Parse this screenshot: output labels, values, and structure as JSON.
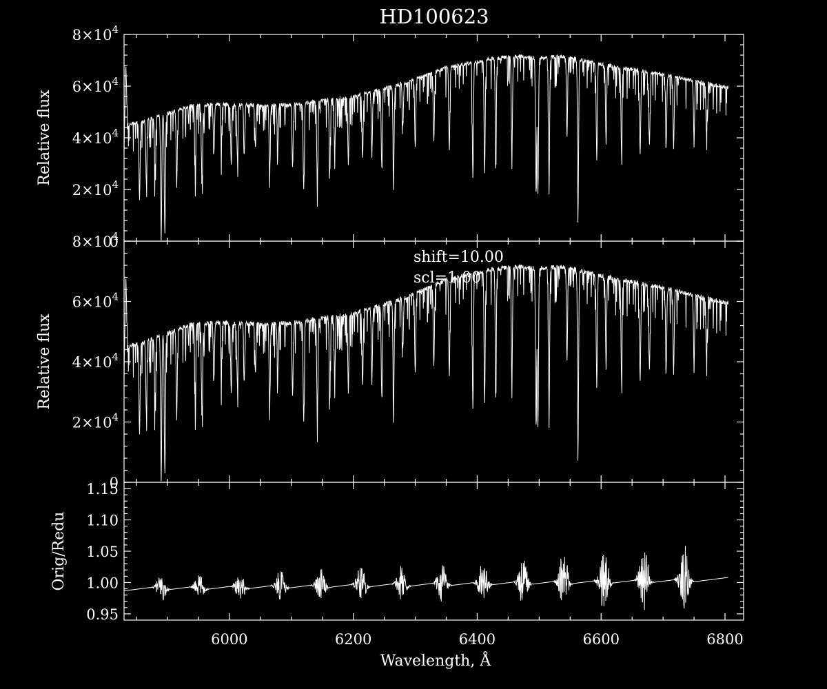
{
  "title": "HD100623",
  "xlabel": "Wavelength, Å",
  "chart_data": [
    {
      "type": "line",
      "name": "top",
      "ylabel": "Relative flux",
      "xlim": [
        5830,
        6830
      ],
      "ylim": [
        0,
        80000
      ],
      "x_ticks": [
        6000,
        6200,
        6400,
        6600,
        6800
      ],
      "y_ticks": [
        {
          "value": 0,
          "mant": "0",
          "exp": ""
        },
        {
          "value": 20000,
          "mant": "2×10",
          "exp": "4"
        },
        {
          "value": 40000,
          "mant": "4×10",
          "exp": "4"
        },
        {
          "value": 60000,
          "mant": "6×10",
          "exp": "4"
        },
        {
          "value": 80000,
          "mant": "8×10",
          "exp": "4"
        }
      ],
      "continuum": [
        [
          5830,
          35000
        ],
        [
          5833,
          68000
        ],
        [
          5836,
          45000
        ],
        [
          5860,
          46500
        ],
        [
          5900,
          49500
        ],
        [
          5940,
          52500
        ],
        [
          5980,
          53000
        ],
        [
          6050,
          52500
        ],
        [
          6100,
          52800
        ],
        [
          6200,
          56000
        ],
        [
          6280,
          61000
        ],
        [
          6350,
          67000
        ],
        [
          6420,
          70500
        ],
        [
          6460,
          71500
        ],
        [
          6500,
          71000
        ],
        [
          6540,
          71500
        ],
        [
          6600,
          68500
        ],
        [
          6650,
          66500
        ],
        [
          6700,
          64500
        ],
        [
          6760,
          61500
        ],
        [
          6805,
          59500
        ]
      ],
      "absorption_lines": [
        [
          5855,
          16000
        ],
        [
          5866,
          22000
        ],
        [
          5880,
          26000
        ],
        [
          5889.95,
          1000
        ],
        [
          5895.92,
          3000
        ],
        [
          5915,
          24000
        ],
        [
          5945,
          30000
        ],
        [
          5956,
          26000
        ],
        [
          5975,
          34000
        ],
        [
          5987,
          37000
        ],
        [
          6003,
          30000
        ],
        [
          6013,
          32000
        ],
        [
          6024,
          34000
        ],
        [
          6042,
          36000
        ],
        [
          6065,
          26000
        ],
        [
          6078,
          36000
        ],
        [
          6102,
          29000
        ],
        [
          6120,
          20000
        ],
        [
          6142,
          22000
        ],
        [
          6162,
          28000
        ],
        [
          6170,
          34000
        ],
        [
          6192,
          30000
        ],
        [
          6215,
          32000
        ],
        [
          6230,
          33000
        ],
        [
          6246,
          28000
        ],
        [
          6265,
          25000
        ],
        [
          6280,
          44000
        ],
        [
          6300,
          36000
        ],
        [
          6330,
          38000
        ],
        [
          6355,
          35000
        ],
        [
          6393,
          24000
        ],
        [
          6412,
          27000
        ],
        [
          6430,
          33000
        ],
        [
          6456,
          33000
        ],
        [
          6495,
          20000
        ],
        [
          6498,
          18000
        ],
        [
          6516,
          24000
        ],
        [
          6545,
          41000
        ],
        [
          6562.8,
          15000
        ],
        [
          6593,
          32000
        ],
        [
          6608,
          38000
        ],
        [
          6633,
          34000
        ],
        [
          6663,
          34000
        ],
        [
          6678,
          38000
        ],
        [
          6705,
          38000
        ],
        [
          6717,
          36000
        ],
        [
          6750,
          39000
        ],
        [
          6770,
          42000
        ]
      ],
      "line_width_A": 1.3
    },
    {
      "type": "line",
      "name": "middle",
      "ylabel": "Relative flux",
      "annotations": [
        "shift=10.00",
        "scl=1.00"
      ],
      "xlim": [
        5830,
        6830
      ],
      "ylim": [
        0,
        80000
      ],
      "x_ticks": [
        6000,
        6200,
        6400,
        6600,
        6800
      ],
      "y_ticks": [
        {
          "value": 0,
          "mant": "0",
          "exp": ""
        },
        {
          "value": 20000,
          "mant": "2×10",
          "exp": "4"
        },
        {
          "value": 40000,
          "mant": "4×10",
          "exp": "4"
        },
        {
          "value": 60000,
          "mant": "6×10",
          "exp": "4"
        },
        {
          "value": 80000,
          "mant": "8×10",
          "exp": "4"
        }
      ],
      "continuum": [
        [
          5830,
          35000
        ],
        [
          5833,
          68000
        ],
        [
          5836,
          45000
        ],
        [
          5860,
          46500
        ],
        [
          5900,
          49500
        ],
        [
          5940,
          52500
        ],
        [
          5980,
          53000
        ],
        [
          6050,
          52500
        ],
        [
          6100,
          52800
        ],
        [
          6200,
          56000
        ],
        [
          6280,
          61000
        ],
        [
          6350,
          67000
        ],
        [
          6420,
          70500
        ],
        [
          6460,
          71500
        ],
        [
          6500,
          71000
        ],
        [
          6540,
          71500
        ],
        [
          6600,
          68500
        ],
        [
          6650,
          66500
        ],
        [
          6700,
          64500
        ],
        [
          6760,
          61500
        ],
        [
          6805,
          59500
        ]
      ],
      "absorption_lines": [
        [
          5855,
          16000
        ],
        [
          5866,
          22000
        ],
        [
          5880,
          26000
        ],
        [
          5889.95,
          1000
        ],
        [
          5895.92,
          3000
        ],
        [
          5915,
          24000
        ],
        [
          5945,
          30000
        ],
        [
          5956,
          26000
        ],
        [
          5975,
          34000
        ],
        [
          5987,
          37000
        ],
        [
          6003,
          30000
        ],
        [
          6013,
          32000
        ],
        [
          6024,
          34000
        ],
        [
          6042,
          36000
        ],
        [
          6065,
          26000
        ],
        [
          6078,
          36000
        ],
        [
          6102,
          29000
        ],
        [
          6120,
          20000
        ],
        [
          6142,
          22000
        ],
        [
          6162,
          28000
        ],
        [
          6170,
          34000
        ],
        [
          6192,
          30000
        ],
        [
          6215,
          32000
        ],
        [
          6230,
          33000
        ],
        [
          6246,
          28000
        ],
        [
          6265,
          25000
        ],
        [
          6280,
          44000
        ],
        [
          6300,
          36000
        ],
        [
          6330,
          38000
        ],
        [
          6355,
          35000
        ],
        [
          6393,
          24000
        ],
        [
          6412,
          27000
        ],
        [
          6430,
          33000
        ],
        [
          6456,
          33000
        ],
        [
          6495,
          20000
        ],
        [
          6498,
          18000
        ],
        [
          6516,
          24000
        ],
        [
          6545,
          41000
        ],
        [
          6562.8,
          15000
        ],
        [
          6593,
          32000
        ],
        [
          6608,
          38000
        ],
        [
          6633,
          34000
        ],
        [
          6663,
          34000
        ],
        [
          6678,
          38000
        ],
        [
          6705,
          38000
        ],
        [
          6717,
          36000
        ],
        [
          6750,
          39000
        ],
        [
          6770,
          42000
        ]
      ],
      "line_width_A": 1.3
    },
    {
      "type": "line",
      "name": "bottom",
      "ylabel": "Orig/Redu",
      "xlim": [
        5830,
        6830
      ],
      "ylim": [
        0.94,
        1.16
      ],
      "x_ticks": [
        6000,
        6200,
        6400,
        6600,
        6800
      ],
      "y_ticks": [
        {
          "value": 0.95,
          "mant": "0.95",
          "exp": ""
        },
        {
          "value": 1.0,
          "mant": "1.00",
          "exp": ""
        },
        {
          "value": 1.05,
          "mant": "1.05",
          "exp": ""
        },
        {
          "value": 1.1,
          "mant": "1.10",
          "exp": ""
        },
        {
          "value": 1.15,
          "mant": "1.15",
          "exp": ""
        }
      ],
      "baseline": {
        "start": 0.99,
        "period_A": 65.5,
        "phase_A": 5827,
        "amp": 0.012,
        "end_value": 1.005
      },
      "bursts": [
        {
          "center": 5890,
          "amp": 0.02
        },
        {
          "center": 5951,
          "amp": 0.018
        },
        {
          "center": 6017,
          "amp": 0.022
        },
        {
          "center": 6082,
          "amp": 0.024
        },
        {
          "center": 6147,
          "amp": 0.026
        },
        {
          "center": 6212,
          "amp": 0.028
        },
        {
          "center": 6278,
          "amp": 0.03
        },
        {
          "center": 6343,
          "amp": 0.032
        },
        {
          "center": 6409,
          "amp": 0.035
        },
        {
          "center": 6474,
          "amp": 0.04
        },
        {
          "center": 6539,
          "amp": 0.045
        },
        {
          "center": 6604,
          "amp": 0.048
        },
        {
          "center": 6669,
          "amp": 0.052
        },
        {
          "center": 6734,
          "amp": 0.056
        }
      ]
    }
  ]
}
